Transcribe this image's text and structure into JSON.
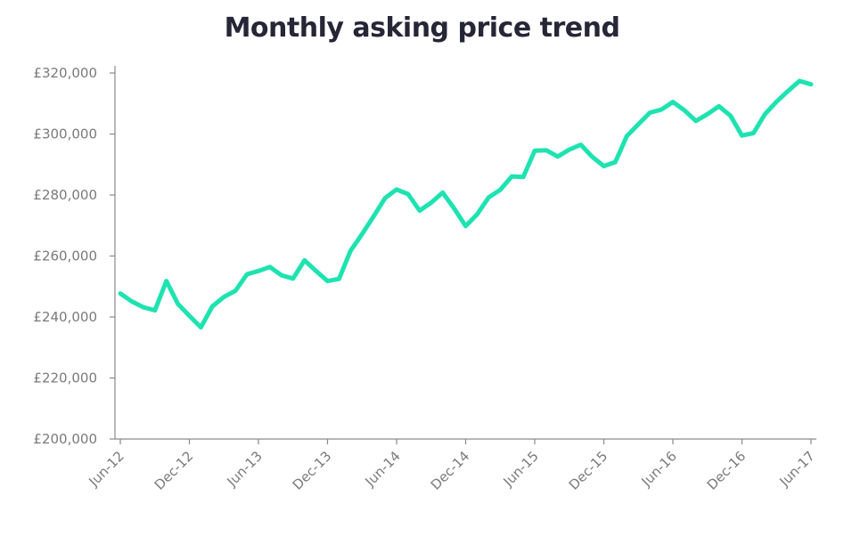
{
  "chart_data": {
    "type": "line",
    "title": "Monthly asking price trend",
    "xlabel": "",
    "ylabel": "",
    "ylim": [
      200000,
      320000
    ],
    "y_ticks": [
      "£200,000",
      "£220,000",
      "£240,000",
      "£260,000",
      "£280,000",
      "£300,000",
      "£320,000"
    ],
    "y_tick_values": [
      200000,
      220000,
      240000,
      260000,
      280000,
      300000,
      320000
    ],
    "x_ticks": [
      "Jun-12",
      "Dec-12",
      "Jun-13",
      "Dec-13",
      "Jun-14",
      "Dec-14",
      "Jun-15",
      "Dec-15",
      "Jun-16",
      "Dec-16",
      "Jun-17"
    ],
    "x_tick_index": [
      0,
      6,
      12,
      18,
      24,
      30,
      36,
      42,
      48,
      54,
      60
    ],
    "line_color": "#1ee3b1",
    "grid": false,
    "series": [
      {
        "values": [
          247700,
          245100,
          243200,
          242200,
          251800,
          244300,
          240400,
          236600,
          243500,
          246600,
          248600,
          254000,
          255100,
          256400,
          253700,
          252600,
          258600,
          255100,
          251800,
          252500,
          261700,
          267200,
          273000,
          279000,
          281800,
          280300,
          274900,
          277500,
          280800,
          275600,
          269800,
          273700,
          279200,
          281700,
          286100,
          285900,
          294500,
          294700,
          292600,
          294900,
          296500,
          292500,
          289500,
          290800,
          299300,
          303200,
          307000,
          308000,
          310500,
          307800,
          304300,
          306500,
          309100,
          306000,
          299500,
          300300,
          306500,
          310600,
          314100,
          317400,
          316300
        ]
      }
    ]
  }
}
